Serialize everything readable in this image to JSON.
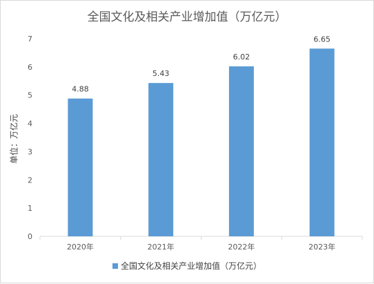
{
  "chart_data": {
    "type": "bar",
    "title": "全国文化及相关产业增加值（万亿元）",
    "ylabel": "单位：万亿元",
    "xlabel": "",
    "categories": [
      "2020年",
      "2021年",
      "2022年",
      "2023年"
    ],
    "series": [
      {
        "name": "全国文化及相关产业增加值（万亿元）",
        "values": [
          4.88,
          5.43,
          6.02,
          6.65
        ],
        "data_labels": [
          "4.88",
          "5.43",
          "6.02",
          "6.65"
        ]
      }
    ],
    "ylim": [
      0,
      7
    ],
    "yticks": [
      "0",
      "1",
      "2",
      "3",
      "4",
      "5",
      "6",
      "7"
    ],
    "grid": false,
    "legend_position": "bottom",
    "bar_color": "#5b9bd5"
  }
}
